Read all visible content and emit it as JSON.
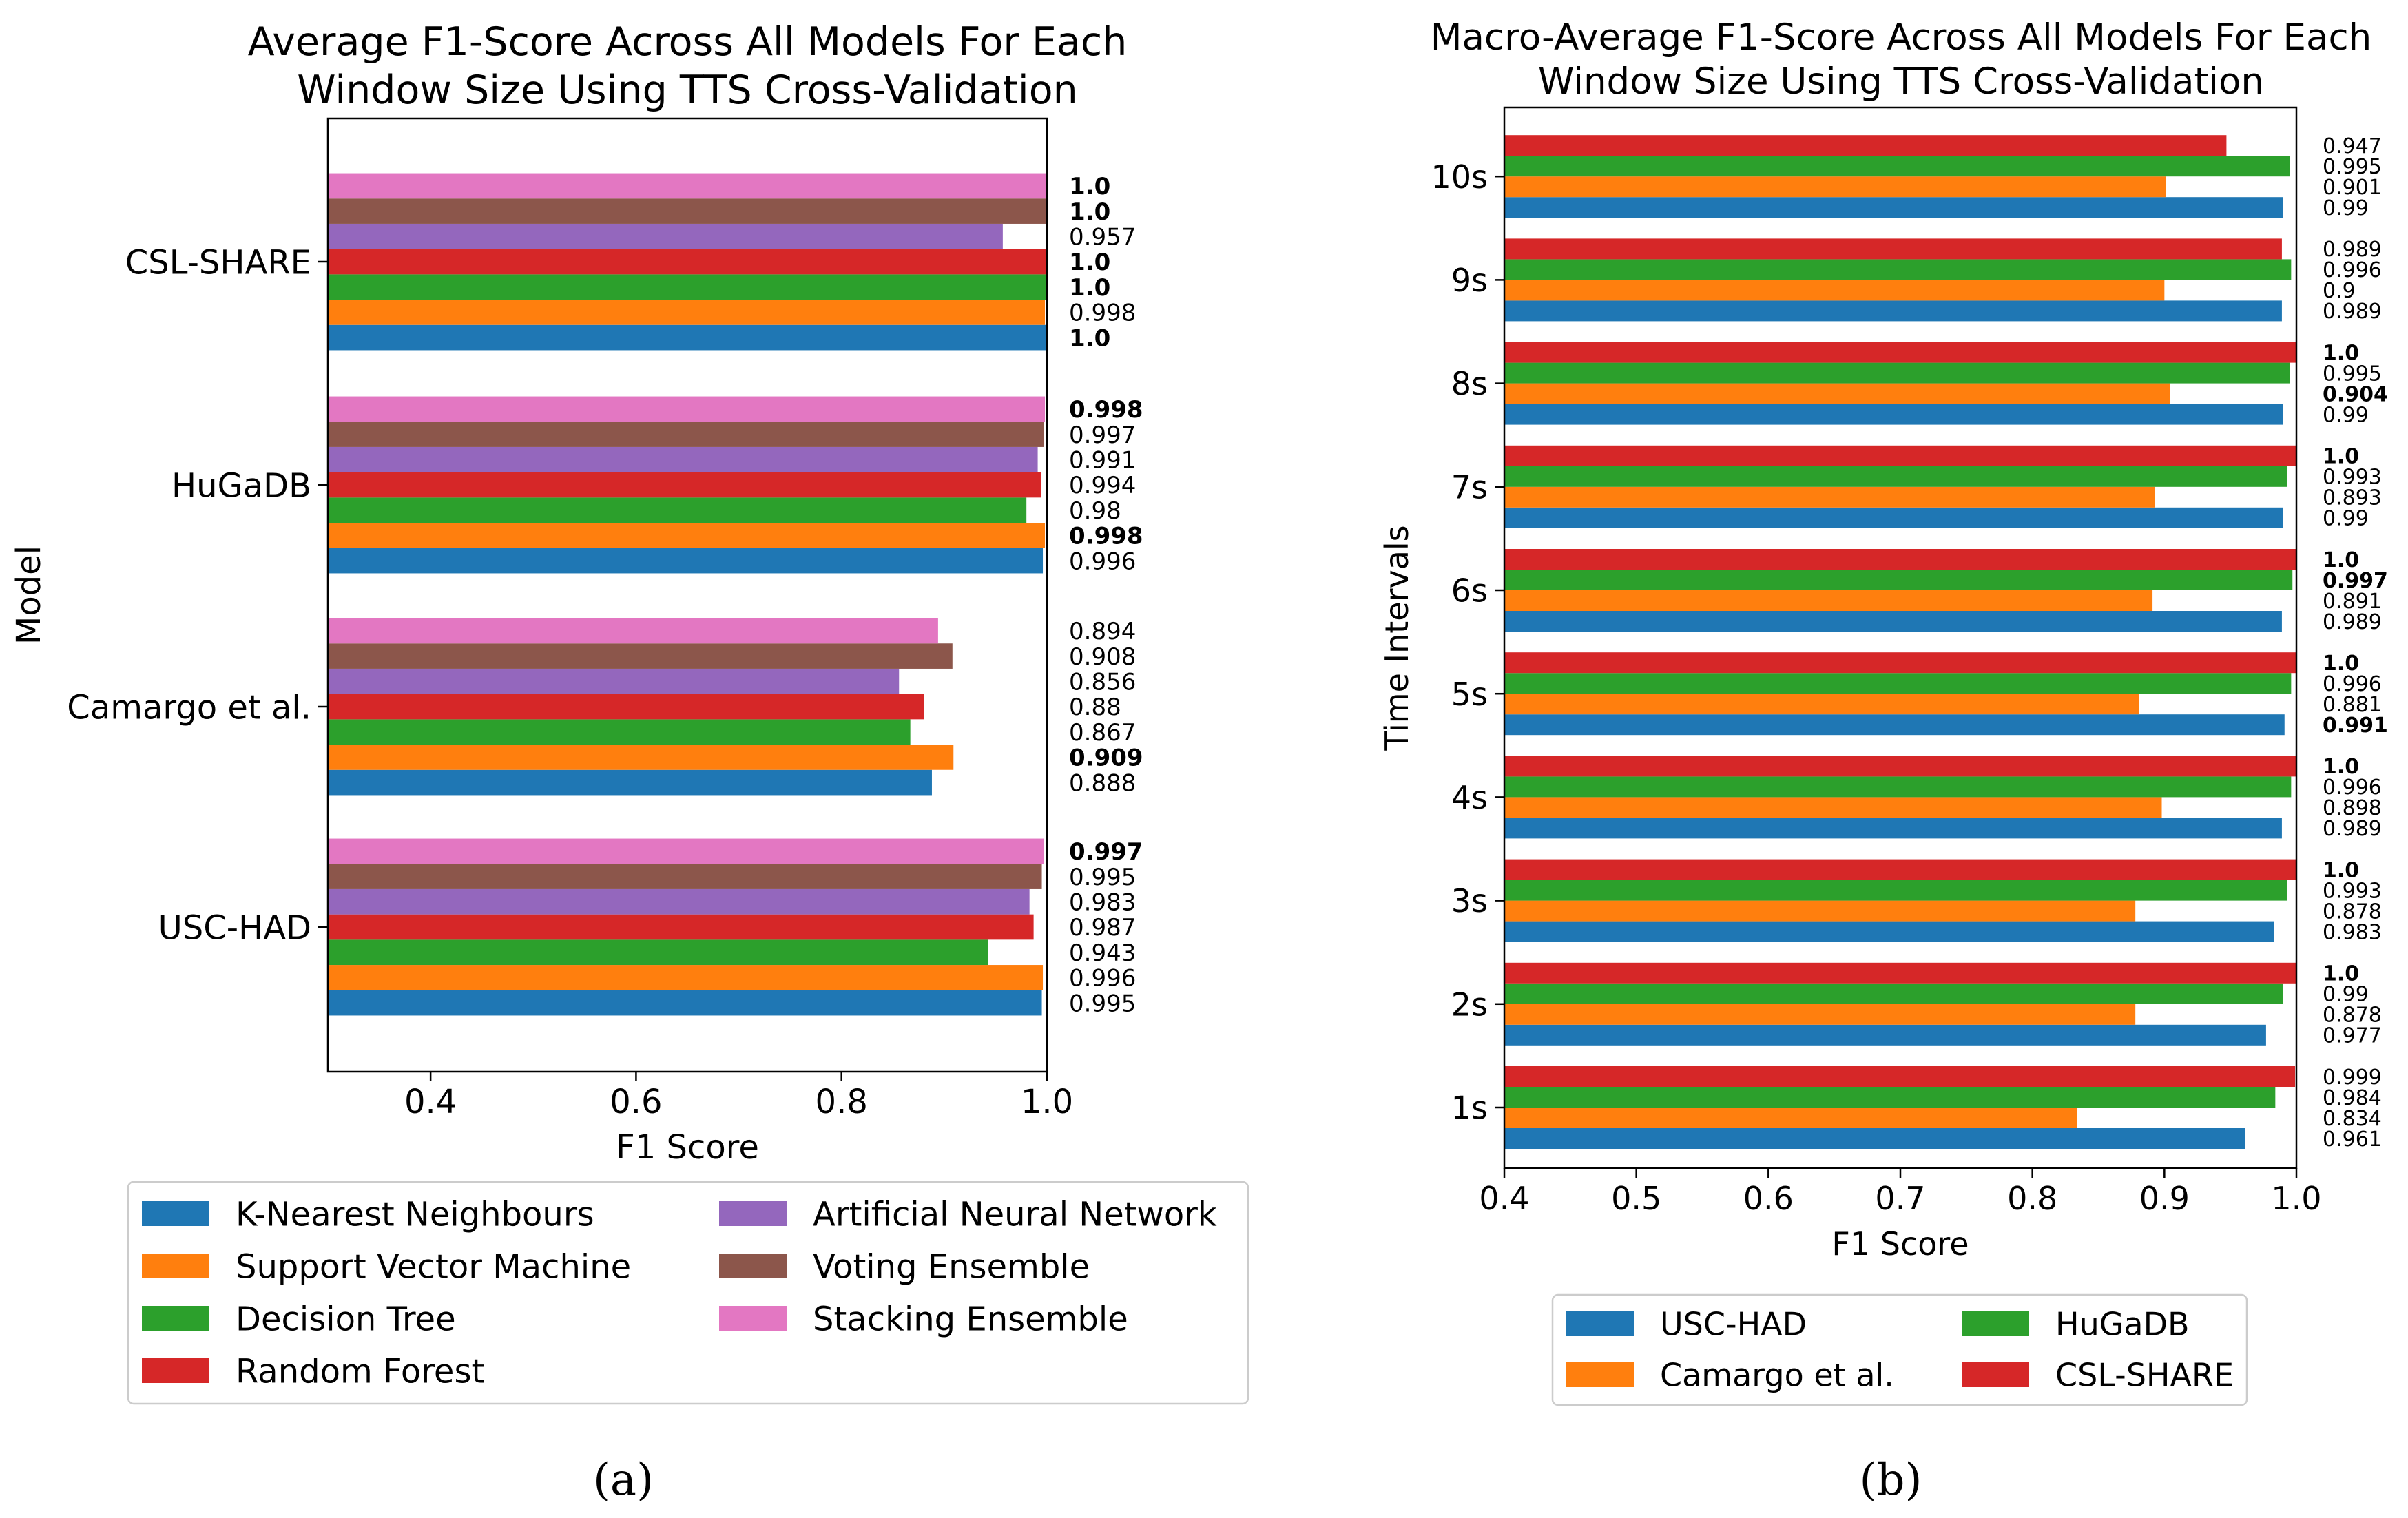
{
  "chart_data": [
    {
      "panel": "a",
      "panel_label": "(a)",
      "type": "bar",
      "orientation": "horizontal",
      "title_lines": [
        "Average F1-Score Across All Models For Each",
        "Window Size Using TTS Cross-Validation"
      ],
      "xlabel": "F1 Score",
      "ylabel": "Model",
      "xlim": [
        0.3,
        1.0
      ],
      "xticks": [
        0.4,
        0.6,
        0.8,
        1.0
      ],
      "xtick_labels": [
        "0.4",
        "0.6",
        "0.8",
        "1.0"
      ],
      "grid": false,
      "legend_position": "bottom",
      "categories": [
        "USC-HAD",
        "Camargo et al.",
        "HuGaDB",
        "CSL-SHARE"
      ],
      "series": [
        {
          "name": "K-Nearest Neighbours",
          "color": "#1f77b4",
          "values": [
            0.995,
            0.888,
            0.996,
            1.0
          ],
          "labels": [
            "0.995",
            "0.888",
            "0.996",
            "1.0"
          ],
          "bold": [
            false,
            false,
            false,
            true
          ]
        },
        {
          "name": "Support Vector Machine",
          "color": "#ff7f0e",
          "values": [
            0.996,
            0.909,
            0.998,
            0.998
          ],
          "labels": [
            "0.996",
            "0.909",
            "0.998",
            "0.998"
          ],
          "bold": [
            false,
            true,
            true,
            false
          ]
        },
        {
          "name": "Decision Tree",
          "color": "#2ca02c",
          "values": [
            0.943,
            0.867,
            0.98,
            1.0
          ],
          "labels": [
            "0.943",
            "0.867",
            "0.98",
            "1.0"
          ],
          "bold": [
            false,
            false,
            false,
            true
          ]
        },
        {
          "name": "Random Forest",
          "color": "#d62728",
          "values": [
            0.987,
            0.88,
            0.994,
            1.0
          ],
          "labels": [
            "0.987",
            "0.88",
            "0.994",
            "1.0"
          ],
          "bold": [
            false,
            false,
            false,
            true
          ]
        },
        {
          "name": "Artificial Neural Network",
          "color": "#9467bd",
          "values": [
            0.983,
            0.856,
            0.991,
            0.957
          ],
          "labels": [
            "0.983",
            "0.856",
            "0.991",
            "0.957"
          ],
          "bold": [
            false,
            false,
            false,
            false
          ]
        },
        {
          "name": "Voting Ensemble",
          "color": "#8c564b",
          "values": [
            0.995,
            0.908,
            0.997,
            1.0
          ],
          "labels": [
            "0.995",
            "0.908",
            "0.997",
            "1.0"
          ],
          "bold": [
            false,
            false,
            false,
            true
          ]
        },
        {
          "name": "Stacking Ensemble",
          "color": "#e377c2",
          "values": [
            0.997,
            0.894,
            0.998,
            1.0
          ],
          "labels": [
            "0.997",
            "0.894",
            "0.998",
            "1.0"
          ],
          "bold": [
            true,
            false,
            true,
            true
          ]
        }
      ]
    },
    {
      "panel": "b",
      "panel_label": "(b)",
      "type": "bar",
      "orientation": "horizontal",
      "title_lines": [
        "Macro-Average F1-Score Across All Models For Each",
        "Window Size Using TTS Cross-Validation"
      ],
      "xlabel": "F1 Score",
      "ylabel": "Time Intervals",
      "xlim": [
        0.4,
        1.0
      ],
      "xticks": [
        0.4,
        0.5,
        0.6,
        0.7,
        0.8,
        0.9,
        1.0
      ],
      "xtick_labels": [
        "0.4",
        "0.5",
        "0.6",
        "0.7",
        "0.8",
        "0.9",
        "1.0"
      ],
      "grid": false,
      "legend_position": "bottom",
      "categories": [
        "1s",
        "2s",
        "3s",
        "4s",
        "5s",
        "6s",
        "7s",
        "8s",
        "9s",
        "10s"
      ],
      "series": [
        {
          "name": "USC-HAD",
          "color": "#1f77b4",
          "values": [
            0.961,
            0.977,
            0.983,
            0.989,
            0.991,
            0.989,
            0.99,
            0.99,
            0.989,
            0.99
          ],
          "labels": [
            "0.961",
            "0.977",
            "0.983",
            "0.989",
            "0.991",
            "0.989",
            "0.99",
            "0.99",
            "0.989",
            "0.99"
          ],
          "bold": [
            false,
            false,
            false,
            false,
            true,
            false,
            false,
            false,
            false,
            false
          ]
        },
        {
          "name": "Camargo et al.",
          "color": "#ff7f0e",
          "values": [
            0.834,
            0.878,
            0.878,
            0.898,
            0.881,
            0.891,
            0.893,
            0.904,
            0.9,
            0.901
          ],
          "labels": [
            "0.834",
            "0.878",
            "0.878",
            "0.898",
            "0.881",
            "0.891",
            "0.893",
            "0.904",
            "0.9",
            "0.901"
          ],
          "bold": [
            false,
            false,
            false,
            false,
            false,
            false,
            false,
            true,
            false,
            false
          ]
        },
        {
          "name": "HuGaDB",
          "color": "#2ca02c",
          "values": [
            0.984,
            0.99,
            0.993,
            0.996,
            0.996,
            0.997,
            0.993,
            0.995,
            0.996,
            0.995
          ],
          "labels": [
            "0.984",
            "0.99",
            "0.993",
            "0.996",
            "0.996",
            "0.997",
            "0.993",
            "0.995",
            "0.996",
            "0.995"
          ],
          "bold": [
            false,
            false,
            false,
            false,
            false,
            true,
            false,
            false,
            false,
            false
          ]
        },
        {
          "name": "CSL-SHARE",
          "color": "#d62728",
          "values": [
            0.999,
            1.0,
            1.0,
            1.0,
            1.0,
            1.0,
            1.0,
            1.0,
            0.989,
            0.947
          ],
          "labels": [
            "0.999",
            "1.0",
            "1.0",
            "1.0",
            "1.0",
            "1.0",
            "1.0",
            "1.0",
            "0.989",
            "0.947"
          ],
          "bold": [
            false,
            true,
            true,
            true,
            true,
            true,
            true,
            true,
            false,
            false
          ]
        }
      ]
    }
  ]
}
